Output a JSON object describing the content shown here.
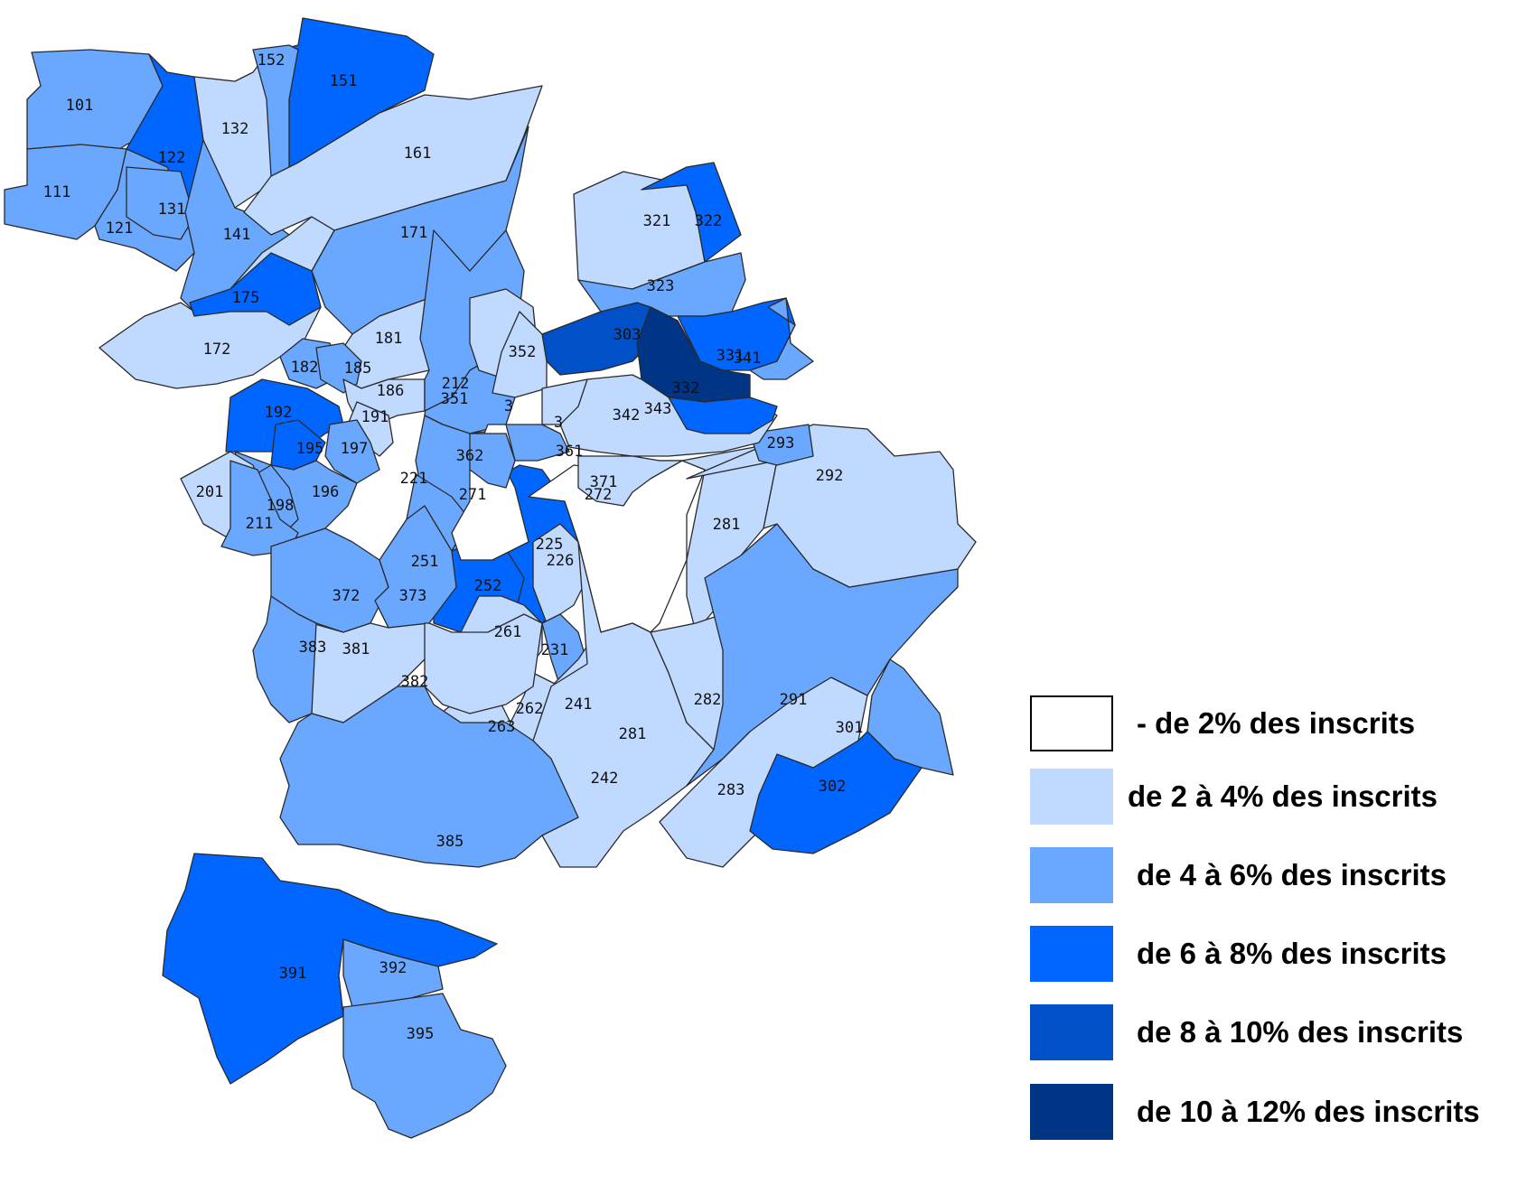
{
  "colors": {
    "lt2": "#ffffff",
    "c2to4": "#c0d9ff",
    "c4to6": "#6aa7ff",
    "c6to8": "#0066ff",
    "c8to10": "#0050c8",
    "c10to12": "#003585"
  },
  "legend": [
    {
      "class": "lt2",
      "label": "- de 2% des inscrits"
    },
    {
      "class": "c2to4",
      "label": "de 2 à 4% des inscrits"
    },
    {
      "class": "c4to6",
      "label": "de 4 à 6% des inscrits"
    },
    {
      "class": "c6to8",
      "label": "de 6 à 8% des inscrits"
    },
    {
      "class": "c8to10",
      "label": "de 8 à 10% des inscrits"
    },
    {
      "class": "c10to12",
      "label": "de 10 à 12% des inscrits"
    }
  ],
  "zones": [
    {
      "id": "101",
      "class": "c4to6"
    },
    {
      "id": "111",
      "class": "c4to6"
    },
    {
      "id": "121",
      "class": "c4to6"
    },
    {
      "id": "122",
      "class": "c6to8"
    },
    {
      "id": "131",
      "class": "c4to6"
    },
    {
      "id": "132",
      "class": "c2to4"
    },
    {
      "id": "141",
      "class": "c4to6"
    },
    {
      "id": "151",
      "class": "c6to8"
    },
    {
      "id": "152",
      "class": "c4to6"
    },
    {
      "id": "161",
      "class": "c2to4"
    },
    {
      "id": "171",
      "class": "c4to6"
    },
    {
      "id": "172",
      "class": "c2to4"
    },
    {
      "id": "175",
      "class": "c6to8"
    },
    {
      "id": "181",
      "class": "c2to4"
    },
    {
      "id": "182",
      "class": "c4to6"
    },
    {
      "id": "185",
      "class": "c4to6"
    },
    {
      "id": "186",
      "class": "c2to4"
    },
    {
      "id": "191",
      "class": "c2to4"
    },
    {
      "id": "192",
      "class": "c6to8"
    },
    {
      "id": "195",
      "class": "c6to8"
    },
    {
      "id": "196",
      "class": "c4to6"
    },
    {
      "id": "197",
      "class": "c4to6"
    },
    {
      "id": "198",
      "class": "c4to6"
    },
    {
      "id": "201",
      "class": "c2to4"
    },
    {
      "id": "211",
      "class": "c4to6"
    },
    {
      "id": "212",
      "class": "c4to6"
    },
    {
      "id": "221",
      "class": "c4to6"
    },
    {
      "id": "225",
      "class": "c6to8"
    },
    {
      "id": "226",
      "class": "c2to4"
    },
    {
      "id": "231",
      "class": "c4to6"
    },
    {
      "id": "241",
      "class": "c2to4"
    },
    {
      "id": "242",
      "class": "c2to4"
    },
    {
      "id": "251",
      "class": "c4to6"
    },
    {
      "id": "252",
      "class": "c6to8"
    },
    {
      "id": "261",
      "class": "c2to4"
    },
    {
      "id": "262",
      "class": "c2to4"
    },
    {
      "id": "263",
      "class": "c2to4"
    },
    {
      "id": "271",
      "class": "lt2"
    },
    {
      "id": "272",
      "class": "lt2"
    },
    {
      "id": "281",
      "class": "c2to4"
    },
    {
      "id": "281",
      "class": "c2to4"
    },
    {
      "id": "282",
      "class": "c2to4"
    },
    {
      "id": "283",
      "class": "c2to4"
    },
    {
      "id": "291",
      "class": "c4to6"
    },
    {
      "id": "292",
      "class": "c2to4"
    },
    {
      "id": "293",
      "class": "c4to6"
    },
    {
      "id": "301",
      "class": "c4to6"
    },
    {
      "id": "302",
      "class": "c6to8"
    },
    {
      "id": "303",
      "class": "c8to10"
    },
    {
      "id": "321",
      "class": "c2to4"
    },
    {
      "id": "322",
      "class": "c6to8"
    },
    {
      "id": "323",
      "class": "c4to6"
    },
    {
      "id": "331",
      "class": "c6to8"
    },
    {
      "id": "332",
      "class": "c10to12"
    },
    {
      "id": "341",
      "class": "c4to6"
    },
    {
      "id": "342",
      "class": "c2to4"
    },
    {
      "id": "343",
      "class": "c6to8"
    },
    {
      "id": "351",
      "class": "c4to6"
    },
    {
      "id": "352",
      "class": "c2to4"
    },
    {
      "id": "3",
      "class": "c2to4"
    },
    {
      "id": "3",
      "class": "c2to4"
    },
    {
      "id": "361",
      "class": "c4to6"
    },
    {
      "id": "362",
      "class": "c4to6"
    },
    {
      "id": "371",
      "class": "c2to4"
    },
    {
      "id": "372",
      "class": "c4to6"
    },
    {
      "id": "373",
      "class": "c4to6"
    },
    {
      "id": "381",
      "class": "c2to4"
    },
    {
      "id": "382",
      "class": "c2to4"
    },
    {
      "id": "383",
      "class": "c4to6"
    },
    {
      "id": "385",
      "class": "c4to6"
    },
    {
      "id": "391",
      "class": "c6to8"
    },
    {
      "id": "392",
      "class": "c4to6"
    },
    {
      "id": "395",
      "class": "c4to6"
    }
  ]
}
